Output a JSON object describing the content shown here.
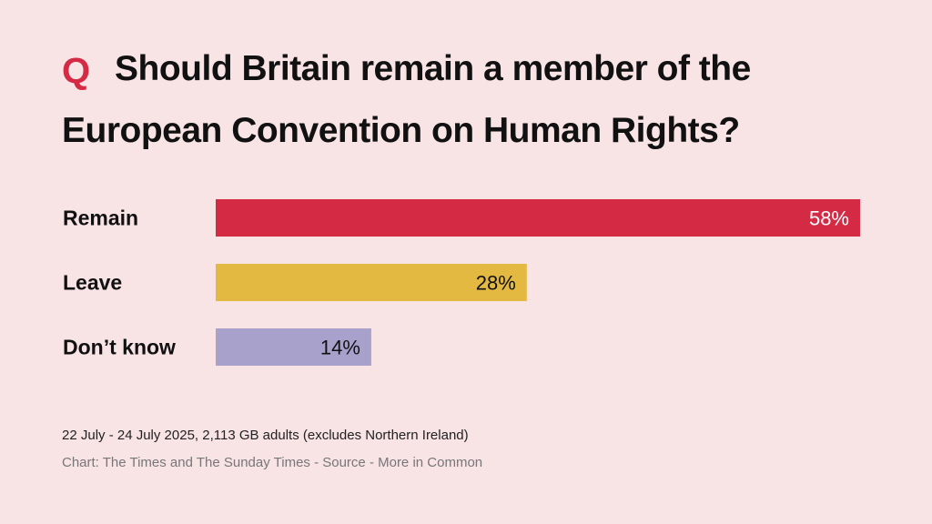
{
  "colors": {
    "background": "#f8e3e5",
    "accent": "#d42a44",
    "remain": "#d42a44",
    "leave": "#e3b942",
    "dont_know": "#a7a1cc"
  },
  "header": {
    "q_mark": "Q",
    "title_line1": "Should Britain remain a member of the",
    "title_line2": "European Convention on Human Rights?"
  },
  "chart_data": {
    "type": "bar",
    "orientation": "horizontal",
    "title": "Should Britain remain a member of the European Convention on Human Rights?",
    "categories": [
      "Remain",
      "Leave",
      "Don’t know"
    ],
    "values": [
      58,
      28,
      14
    ],
    "value_labels": [
      "58%",
      "28%",
      "14%"
    ],
    "bar_colors": [
      "#d42a44",
      "#e3b942",
      "#a7a1cc"
    ],
    "value_label_colors": [
      "#ffffff",
      "#111111",
      "#111111"
    ],
    "xlim": [
      0,
      58
    ],
    "grid": false,
    "legend": "none"
  },
  "footer": {
    "note": "22 July - 24 July 2025, 2,113 GB adults (excludes Northern Ireland)",
    "credit": "Chart: The Times and The Sunday Times - Source - More in Common"
  }
}
